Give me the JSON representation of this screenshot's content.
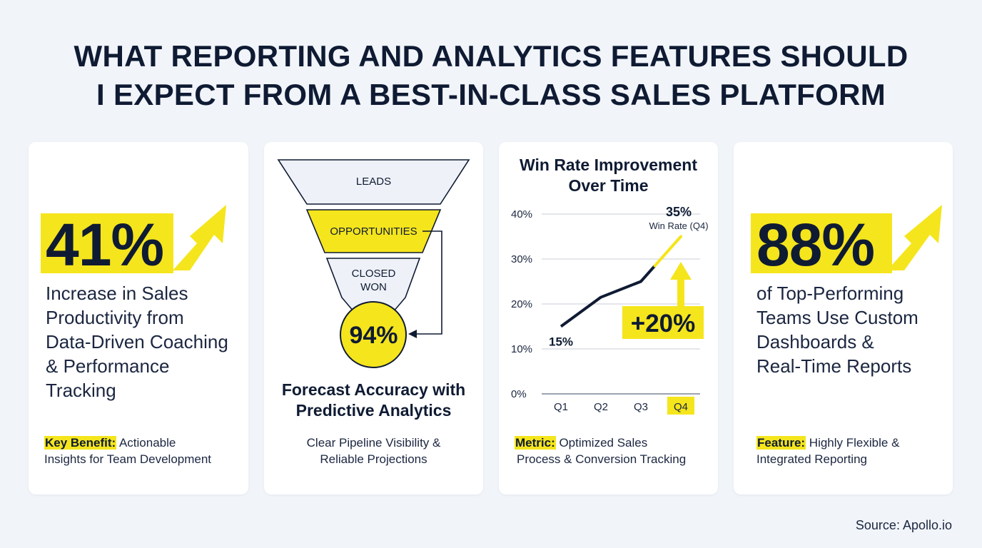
{
  "title": {
    "line1": "WHAT REPORTING AND ANALYTICS FEATURES SHOULD",
    "line2": "I EXPECT FROM A BEST-IN-CLASS SALES PLATFORM"
  },
  "card1": {
    "stat": "41%",
    "description": [
      "Increase in Sales",
      "Productivity from",
      "Data-Driven Coaching",
      "& Performance",
      "Tracking"
    ],
    "footer_label": "Key Benefit:",
    "footer_text_1": " Actionable",
    "footer_text_2": "Insights for Team Development"
  },
  "card2": {
    "funnel": {
      "top": "LEADS",
      "middle": "OPPORTUNITIES",
      "bottom_1": "CLOSED",
      "bottom_2": "WON",
      "result": "94%"
    },
    "heading_1": "Forecast Accuracy with",
    "heading_2": "Predictive Analytics",
    "footer_1": "Clear Pipeline Visibility &",
    "footer_2": "Reliable Projections"
  },
  "card3": {
    "heading_1": "Win Rate Improvement",
    "heading_2": "Over Time",
    "footer_label": "Metric:",
    "footer_text_1": " Optimized Sales",
    "footer_text_2": "Process & Conversion Tracking"
  },
  "card4": {
    "stat": "88%",
    "description": [
      "of Top-Performing",
      "Teams Use Custom",
      "Dashboards &",
      "Real-Time Reports"
    ],
    "footer_label": "Feature:",
    "footer_text_1": " Highly Flexible &",
    "footer_text_2": "Integrated Reporting"
  },
  "chart_data": {
    "type": "line",
    "title": "Win Rate Improvement Over Time",
    "categories": [
      "Q1",
      "Q2",
      "Q3",
      "Q4"
    ],
    "highlight_category": "Q4",
    "series": [
      {
        "values": [
          15,
          21.5,
          25,
          35
        ]
      }
    ],
    "ylim": [
      0,
      40
    ],
    "yticks": [
      "0%",
      "10%",
      "20%",
      "30%",
      "40%"
    ],
    "grid": true,
    "annotations": {
      "start_label": "15%",
      "end_label": "35%",
      "end_sublabel": "Win Rate (Q4)",
      "change_label": "+20%"
    }
  },
  "source": "Source: Apollo.io",
  "colors": {
    "accent": "#f5e51c",
    "navy": "#0f1b33",
    "background": "#f1f4f9"
  }
}
